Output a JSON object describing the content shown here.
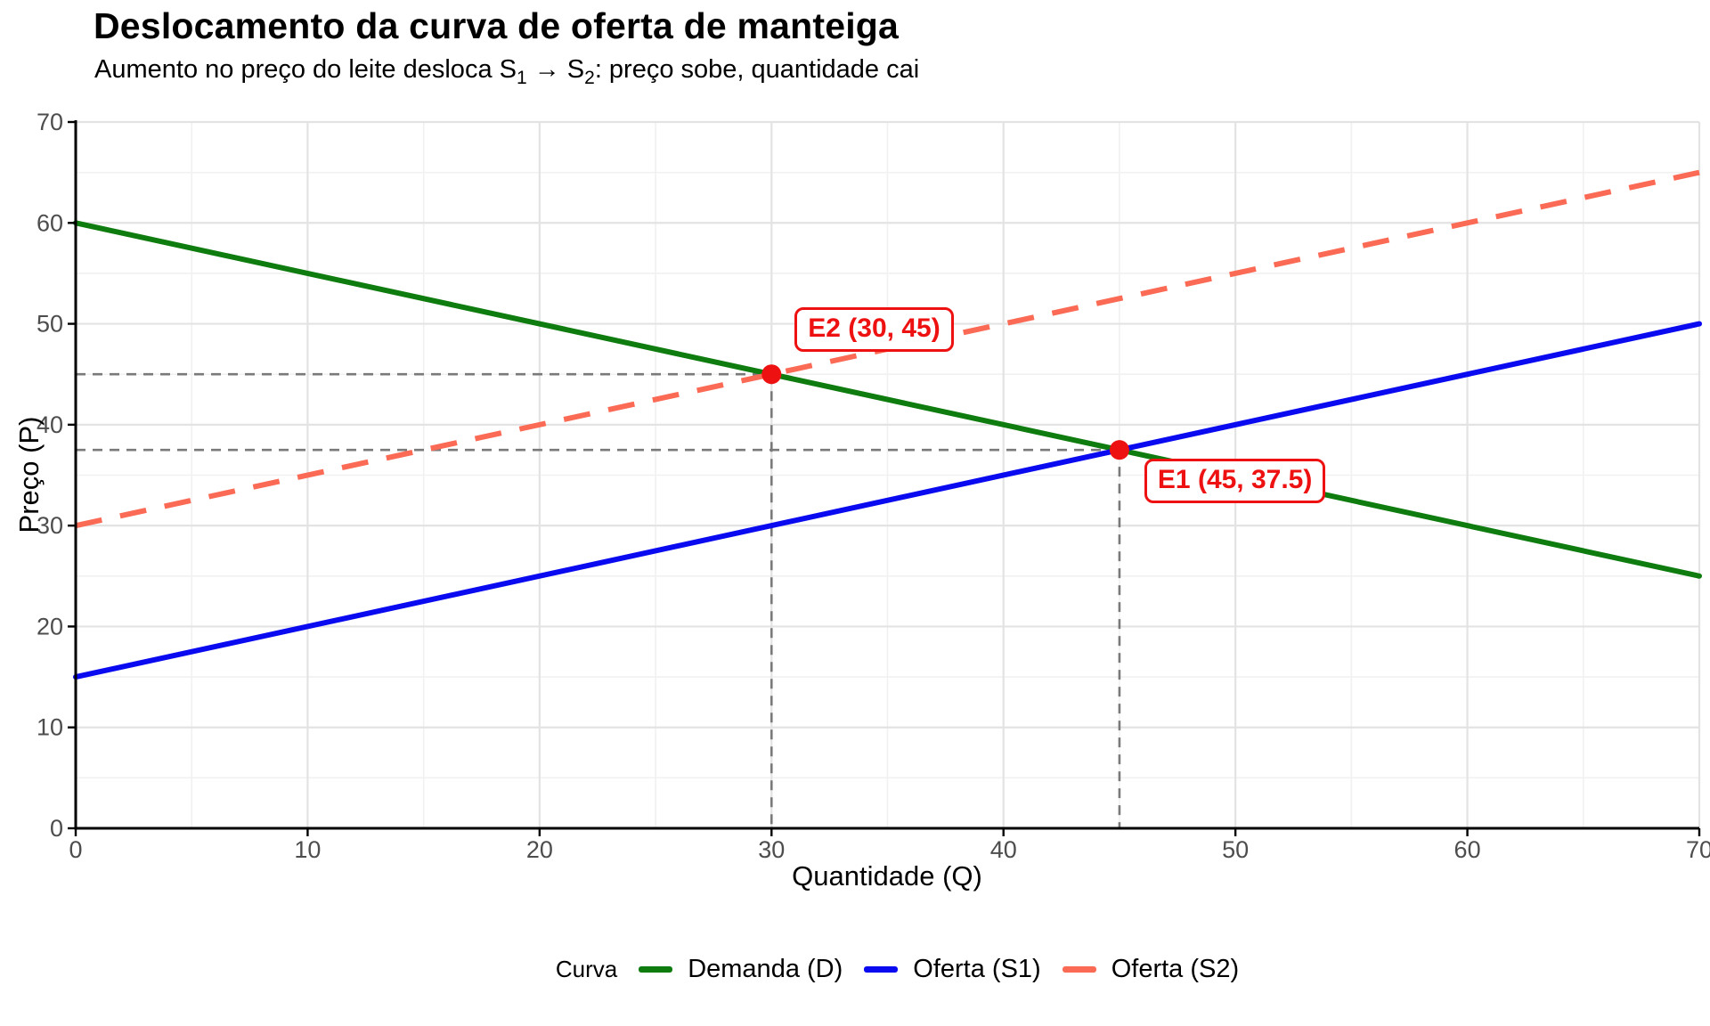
{
  "header": {
    "title": "Deslocamento da curva de oferta de manteiga",
    "subtitle_parts": {
      "p1": "Aumento no preço do leite desloca S",
      "s1": "1",
      "p2": " → S",
      "s2": "2",
      "p3": ": preço sobe, quantidade cai"
    }
  },
  "theme": {
    "background": "#ffffff",
    "grid_major": "#e3e3e3",
    "grid_minor": "#f1f1f1",
    "axis_line": "#000000",
    "tick_label_color": "#4d4d4d",
    "guide_color": "#7a7a7a"
  },
  "chart_data": {
    "type": "line",
    "title": "Deslocamento da curva de oferta de manteiga",
    "subtitle": "Aumento no preço do leite desloca S1 → S2: preço sobe, quantidade cai",
    "xlabel": "Quantidade (Q)",
    "ylabel": "Preço (P)",
    "xlim": [
      0,
      70
    ],
    "ylim": [
      0,
      70
    ],
    "xticks": [
      0,
      10,
      20,
      30,
      40,
      50,
      60,
      70
    ],
    "yticks": [
      0,
      10,
      20,
      30,
      40,
      50,
      60,
      70
    ],
    "grid": "major every 10, minor every 5, light gray on white panel",
    "legend": {
      "title": "Curva",
      "position": "bottom"
    },
    "series": [
      {
        "id": "D",
        "name": "Demanda (D)",
        "type": "line",
        "style": "solid",
        "color": "#0e7c0e",
        "x": [
          0,
          70
        ],
        "y": [
          60,
          25
        ]
      },
      {
        "id": "S1",
        "name": "Oferta (S1)",
        "type": "line",
        "style": "solid",
        "color": "#0a0af0",
        "x": [
          0,
          70
        ],
        "y": [
          15,
          50
        ]
      },
      {
        "id": "S2",
        "name": "Oferta (S2)",
        "type": "line",
        "style": "dashed",
        "color": "#fb6a55",
        "x": [
          0,
          70
        ],
        "y": [
          30,
          65
        ]
      }
    ],
    "points": [
      {
        "id": "E1",
        "label": "E1 (45, 37.5)",
        "x": 45,
        "y": 37.5,
        "color": "#ee1111"
      },
      {
        "id": "E2",
        "label": "E2 (30, 45)",
        "x": 30,
        "y": 45,
        "color": "#ee1111"
      }
    ],
    "guides": "dashed gray reference lines from each equilibrium point to the x and y axes"
  }
}
